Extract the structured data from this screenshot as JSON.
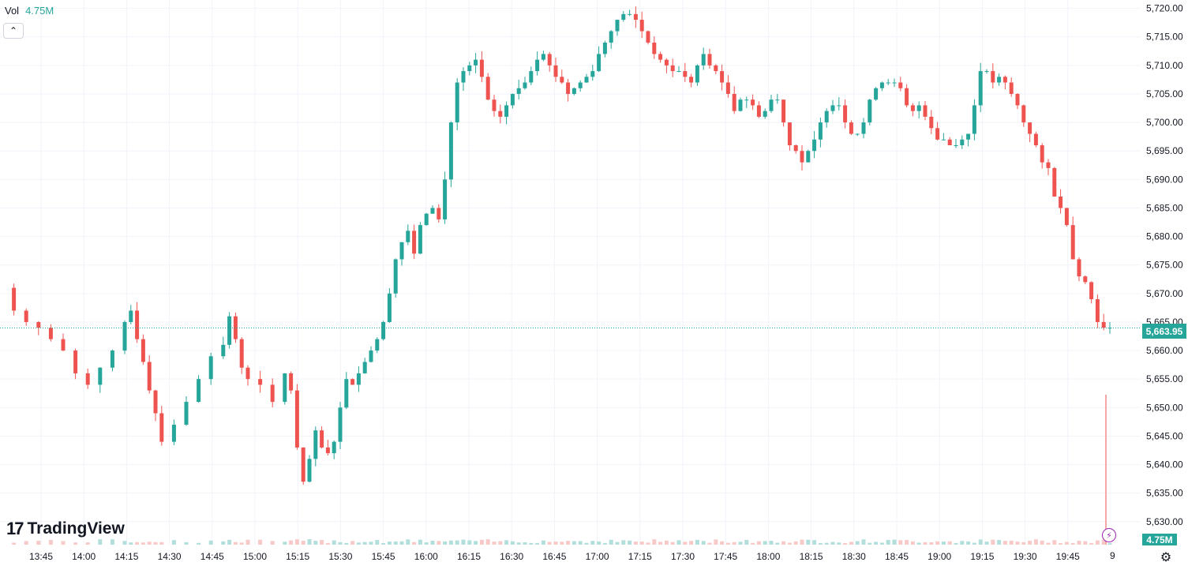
{
  "legend": {
    "label": "Vol",
    "value": "4.75M",
    "collapse_icon": "chevron-up-icon"
  },
  "brand": {
    "name": "TradingView",
    "icon": "tradingview-logo-icon"
  },
  "colors": {
    "up": "#26a69a",
    "down": "#ef5350",
    "grid": "#f0f3fa",
    "price_line": "#26a69a"
  },
  "last_price_label": "5,663.95",
  "last_volume_label": "4.75M",
  "extra_x_label": "9",
  "icons": {
    "lightning": "lightning-icon",
    "settings": "gear-icon"
  },
  "chart_data": {
    "type": "candlestick",
    "x_ticks": [
      "13:45",
      "14:00",
      "14:15",
      "14:30",
      "14:45",
      "15:00",
      "15:15",
      "15:30",
      "15:45",
      "16:00",
      "16:15",
      "16:30",
      "16:45",
      "17:00",
      "17:15",
      "17:30",
      "17:45",
      "18:00",
      "18:15",
      "18:30",
      "18:45",
      "19:00",
      "19:15",
      "19:30",
      "19:45"
    ],
    "y_ticks": [
      "5,630.00",
      "5,635.00",
      "5,640.00",
      "5,645.00",
      "5,650.00",
      "5,655.00",
      "5,660.00",
      "5,665.00",
      "5,670.00",
      "5,675.00",
      "5,680.00",
      "5,685.00",
      "5,690.00",
      "5,695.00",
      "5,700.00",
      "5,705.00",
      "5,710.00",
      "5,715.00",
      "5,720.00"
    ],
    "y_range": [
      5629,
      5720.5
    ],
    "last_price": 5663.95,
    "close_path": [
      [
        0,
        5671
      ],
      [
        2,
        5667
      ],
      [
        4,
        5665
      ],
      [
        6,
        5664
      ],
      [
        8,
        5662
      ],
      [
        10,
        5660
      ],
      [
        12,
        5656
      ],
      [
        14,
        5654
      ],
      [
        16,
        5657
      ],
      [
        18,
        5660
      ],
      [
        20,
        5665
      ],
      [
        21,
        5667
      ],
      [
        22,
        5662
      ],
      [
        23,
        5658
      ],
      [
        24,
        5653
      ],
      [
        25,
        5649
      ],
      [
        26,
        5644
      ],
      [
        28,
        5647
      ],
      [
        30,
        5651
      ],
      [
        32,
        5655
      ],
      [
        34,
        5659
      ],
      [
        36,
        5661
      ],
      [
        37,
        5666
      ],
      [
        38,
        5662
      ],
      [
        39,
        5657
      ],
      [
        40,
        5655
      ],
      [
        42,
        5654
      ],
      [
        44,
        5651
      ],
      [
        46,
        5656
      ],
      [
        47,
        5653
      ],
      [
        48,
        5643
      ],
      [
        49,
        5637
      ],
      [
        50,
        5641
      ],
      [
        51,
        5646
      ],
      [
        52,
        5643
      ],
      [
        53,
        5642
      ],
      [
        54,
        5644
      ],
      [
        55,
        5650
      ],
      [
        56,
        5655
      ],
      [
        57,
        5654
      ],
      [
        58,
        5656
      ],
      [
        59,
        5658
      ],
      [
        60,
        5660
      ],
      [
        61,
        5662
      ],
      [
        62,
        5665
      ],
      [
        63,
        5670
      ],
      [
        64,
        5676
      ],
      [
        65,
        5679
      ],
      [
        66,
        5681
      ],
      [
        67,
        5677
      ],
      [
        68,
        5682
      ],
      [
        69,
        5684
      ],
      [
        70,
        5685
      ],
      [
        71,
        5683
      ],
      [
        72,
        5690
      ],
      [
        73,
        5700
      ],
      [
        74,
        5707
      ],
      [
        75,
        5709
      ],
      [
        76,
        5710
      ],
      [
        77,
        5711
      ],
      [
        78,
        5708
      ],
      [
        79,
        5704
      ],
      [
        80,
        5702
      ],
      [
        81,
        5701
      ],
      [
        82,
        5703
      ],
      [
        83,
        5705
      ],
      [
        84,
        5706
      ],
      [
        85,
        5707
      ],
      [
        86,
        5709
      ],
      [
        87,
        5711
      ],
      [
        88,
        5712
      ],
      [
        89,
        5710
      ],
      [
        90,
        5708
      ],
      [
        91,
        5707
      ],
      [
        92,
        5705
      ],
      [
        93,
        5706
      ],
      [
        94,
        5707
      ],
      [
        95,
        5708
      ],
      [
        96,
        5709
      ],
      [
        97,
        5712
      ],
      [
        98,
        5714
      ],
      [
        99,
        5716
      ],
      [
        100,
        5718
      ],
      [
        101,
        5719
      ],
      [
        102,
        5719
      ],
      [
        103,
        5718
      ],
      [
        104,
        5716
      ],
      [
        105,
        5714
      ],
      [
        106,
        5712
      ],
      [
        107,
        5711
      ],
      [
        108,
        5710
      ],
      [
        109,
        5709
      ],
      [
        110,
        5709
      ],
      [
        111,
        5708
      ],
      [
        112,
        5707
      ],
      [
        113,
        5710
      ],
      [
        114,
        5712
      ],
      [
        115,
        5710
      ],
      [
        116,
        5709
      ],
      [
        117,
        5707
      ],
      [
        118,
        5705
      ],
      [
        119,
        5702
      ],
      [
        120,
        5704
      ],
      [
        121,
        5704
      ],
      [
        122,
        5703
      ],
      [
        123,
        5701
      ],
      [
        124,
        5702
      ],
      [
        125,
        5704
      ],
      [
        126,
        5704
      ],
      [
        127,
        5700
      ],
      [
        128,
        5696
      ],
      [
        129,
        5695
      ],
      [
        130,
        5693
      ],
      [
        131,
        5695
      ],
      [
        132,
        5697
      ],
      [
        133,
        5700
      ],
      [
        134,
        5702
      ],
      [
        135,
        5703
      ],
      [
        136,
        5703
      ],
      [
        137,
        5700
      ],
      [
        138,
        5698
      ],
      [
        139,
        5698
      ],
      [
        140,
        5700
      ],
      [
        141,
        5704
      ],
      [
        142,
        5706
      ],
      [
        143,
        5707
      ],
      [
        144,
        5707
      ],
      [
        145,
        5707
      ],
      [
        146,
        5706
      ],
      [
        147,
        5703
      ],
      [
        148,
        5702
      ],
      [
        149,
        5703
      ],
      [
        150,
        5701
      ],
      [
        151,
        5699
      ],
      [
        152,
        5697
      ],
      [
        153,
        5697
      ],
      [
        154,
        5696
      ],
      [
        155,
        5696
      ],
      [
        156,
        5697
      ],
      [
        157,
        5698
      ],
      [
        158,
        5703
      ],
      [
        159,
        5709
      ],
      [
        160,
        5709
      ],
      [
        161,
        5707
      ],
      [
        162,
        5708
      ],
      [
        163,
        5707
      ],
      [
        164,
        5705
      ],
      [
        165,
        5703
      ],
      [
        166,
        5700
      ],
      [
        167,
        5698
      ],
      [
        168,
        5696
      ],
      [
        169,
        5693
      ],
      [
        170,
        5692
      ],
      [
        171,
        5687
      ],
      [
        172,
        5685
      ],
      [
        173,
        5682
      ],
      [
        174,
        5676
      ],
      [
        175,
        5673
      ],
      [
        176,
        5672
      ],
      [
        177,
        5669
      ],
      [
        178,
        5665
      ],
      [
        179,
        5664
      ],
      [
        180,
        5664
      ]
    ],
    "volume_last_spike_millions": 4.75
  }
}
